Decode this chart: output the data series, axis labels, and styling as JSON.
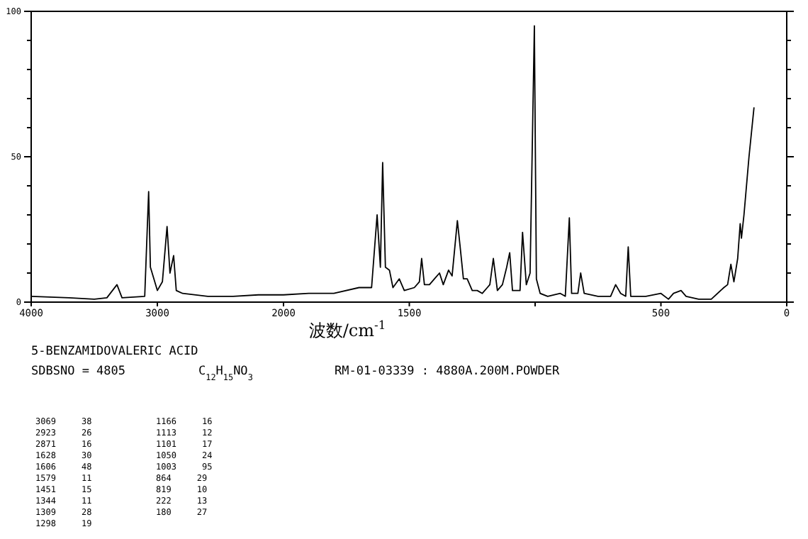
{
  "chart_data": [
    {
      "type": "line",
      "xlim": [
        4000,
        2000
      ],
      "ylim": [
        0,
        100
      ],
      "xticks": [
        4000,
        3000,
        2000
      ],
      "yticks": [
        0,
        {
          "value": 10,
          "label": null
        },
        {
          "value": 20,
          "label": null
        },
        {
          "value": 30,
          "label": null
        },
        {
          "value": 40,
          "label": null
        },
        50,
        {
          "value": 60,
          "label": null
        },
        {
          "value": 70,
          "label": null
        },
        {
          "value": 80,
          "label": null
        },
        {
          "value": 90,
          "label": null
        },
        100
      ],
      "grid": false,
      "marker": "none",
      "line_style": "solid",
      "series": [
        {
          "color": "#000000",
          "x": [
            4000,
            3700,
            3500,
            3400,
            3320,
            3280,
            3100,
            3069,
            3055,
            3000,
            2960,
            2923,
            2900,
            2871,
            2850,
            2800,
            2600,
            2400,
            2200,
            2000
          ],
          "values": [
            2,
            1.5,
            1,
            1.5,
            6,
            1.5,
            2,
            38,
            12,
            4,
            7,
            26,
            10,
            16,
            4,
            3,
            2,
            2,
            2.5,
            2.5
          ]
        }
      ],
      "annotations": [
        "5-BENZAMIDOVALERIC ACID",
        "SDBSNO = 4805",
        "C$_{12}$H$_{15}$NO$_{3}$",
        "RM-01-03339 : 4880A.200M.POWDER",
        "3069     38",
        "2923     26",
        "2871     16",
        "1628     30",
        "1606     48",
        "1579     11",
        "1451     15",
        "1344     11",
        "1309     28",
        "1298     19",
        "1166     16",
        "1113     12",
        "1101     17",
        "1050     24",
        "1003     95",
        "864     29",
        "819     10",
        "222     13",
        "180     27"
      ]
    },
    {
      "type": "line",
      "xlabel": "波数/cm$^{-1}$",
      "xlim": [
        2000,
        0
      ],
      "ylim": [
        0,
        100
      ],
      "xticks": [
        {
          "value": 2000,
          "label": null
        },
        1500,
        {
          "value": 1000,
          "label": null
        },
        500,
        0
      ],
      "yticks": [
        0,
        {
          "value": 10,
          "label": null
        },
        {
          "value": 20,
          "label": null
        },
        {
          "value": 30,
          "label": null
        },
        {
          "value": 40,
          "label": null
        },
        50,
        {
          "value": 60,
          "label": null
        },
        {
          "value": 70,
          "label": null
        },
        {
          "value": 80,
          "label": null
        },
        {
          "value": 90,
          "label": null
        },
        100
      ],
      "tick_labels": "x",
      "grid": false,
      "marker": "none",
      "line_style": "solid",
      "series": [
        {
          "color": "#000000",
          "x": [
            2000,
            1900,
            1800,
            1700,
            1650,
            1628,
            1615,
            1606,
            1595,
            1579,
            1565,
            1540,
            1520,
            1480,
            1460,
            1451,
            1440,
            1420,
            1400,
            1380,
            1365,
            1344,
            1330,
            1309,
            1298,
            1285,
            1270,
            1250,
            1230,
            1210,
            1190,
            1180,
            1166,
            1150,
            1130,
            1113,
            1101,
            1090,
            1080,
            1060,
            1050,
            1035,
            1020,
            1003,
            995,
            980,
            950,
            900,
            880,
            864,
            855,
            830,
            819,
            805,
            750,
            700,
            680,
            660,
            640,
            630,
            620,
            560,
            500,
            470,
            450,
            420,
            400,
            350,
            300,
            250,
            235,
            222,
            210,
            195,
            185,
            180,
            170,
            150,
            130
          ],
          "values": [
            2.5,
            3,
            3,
            5,
            5,
            30,
            12,
            48,
            12,
            11,
            5,
            8,
            4,
            5,
            7,
            15,
            6,
            6,
            8,
            10,
            6,
            11,
            9,
            28,
            19,
            8,
            8,
            4,
            4,
            3,
            5,
            6,
            15,
            4,
            6,
            12,
            17,
            4,
            4,
            4,
            24,
            6,
            10,
            95,
            8,
            3,
            2,
            3,
            2,
            29,
            3,
            3,
            10,
            3,
            2,
            2,
            6,
            3,
            2,
            19,
            2,
            2,
            3,
            1,
            3,
            4,
            2,
            1,
            1,
            5,
            6,
            13,
            7,
            15,
            27,
            22,
            30,
            50,
            67
          ]
        }
      ]
    }
  ]
}
